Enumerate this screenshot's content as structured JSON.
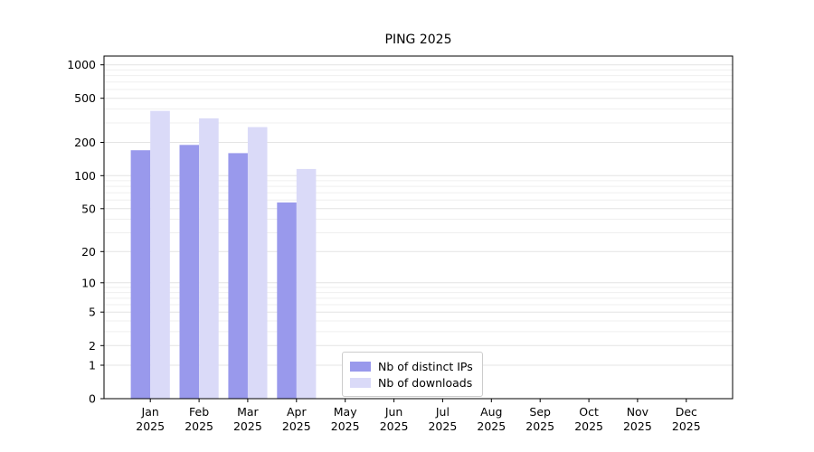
{
  "figure": {
    "background": "#ffffff"
  },
  "chart_data": {
    "type": "bar",
    "title": "PING 2025",
    "categories": [
      "Jan",
      "Feb",
      "Mar",
      "Apr",
      "May",
      "Jun",
      "Jul",
      "Aug",
      "Sep",
      "Oct",
      "Nov",
      "Dec"
    ],
    "x_second_line": "2025",
    "series": [
      {
        "name": "Nb of distinct IPs",
        "color": "#9999ec",
        "values": [
          170,
          190,
          160,
          57,
          null,
          null,
          null,
          null,
          null,
          null,
          null,
          null
        ]
      },
      {
        "name": "Nb of downloads",
        "color": "#dadaf8",
        "values": [
          385,
          330,
          275,
          115,
          null,
          null,
          null,
          null,
          null,
          null,
          null,
          null
        ]
      }
    ],
    "y_ticks": [
      0,
      1,
      2,
      5,
      10,
      20,
      50,
      100,
      200,
      500,
      1000
    ],
    "y_minor_gridlines": [
      3,
      4,
      6,
      7,
      8,
      9,
      30,
      40,
      60,
      70,
      80,
      90,
      300,
      400,
      600,
      700,
      800,
      900
    ],
    "y_scale": "log10(v+1)",
    "ylim": [
      0,
      1200
    ],
    "grid": true,
    "legend_position": "lower-left-of-center",
    "colors": {
      "spine": "#000000",
      "grid_major": "#e4e4e4",
      "grid_minor": "#efefef",
      "tick_label": "#000000"
    }
  }
}
